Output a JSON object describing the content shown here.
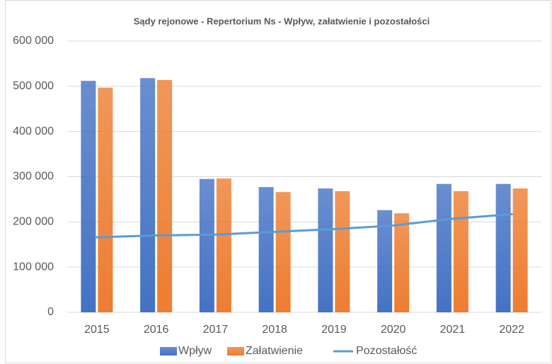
{
  "chart_data": {
    "type": "bar_line",
    "title": "Sądy rejonowe - Repertorium Ns - Wpływ, załatwienie i pozostałości",
    "categories": [
      "2015",
      "2016",
      "2017",
      "2018",
      "2019",
      "2020",
      "2021",
      "2022"
    ],
    "series": [
      {
        "name": "Wpływ",
        "color": "#4472c4",
        "type": "bar",
        "values": [
          512000,
          518000,
          295000,
          277000,
          274000,
          226000,
          284000,
          284000
        ]
      },
      {
        "name": "Załatwienie",
        "color": "#ed7d31",
        "type": "bar",
        "values": [
          497000,
          514000,
          296000,
          266000,
          268000,
          219000,
          268000,
          274000
        ]
      },
      {
        "name": "Pozostałość",
        "color": "#5b9bd5",
        "type": "line",
        "values": [
          166000,
          170000,
          172000,
          178000,
          184000,
          192000,
          207000,
          217000
        ]
      }
    ],
    "ylim": [
      0,
      600000
    ],
    "yticks": [
      0,
      {
        "value": 100000,
        "label": "100 000"
      },
      {
        "value": 200000,
        "label": "200 000"
      },
      {
        "value": 300000,
        "label": "300 000"
      },
      {
        "value": 400000,
        "label": "400 000"
      },
      {
        "value": 500000,
        "label": "500 000"
      },
      {
        "value": 600000,
        "label": "600 000"
      }
    ],
    "grid": true,
    "legend": "bottom"
  }
}
